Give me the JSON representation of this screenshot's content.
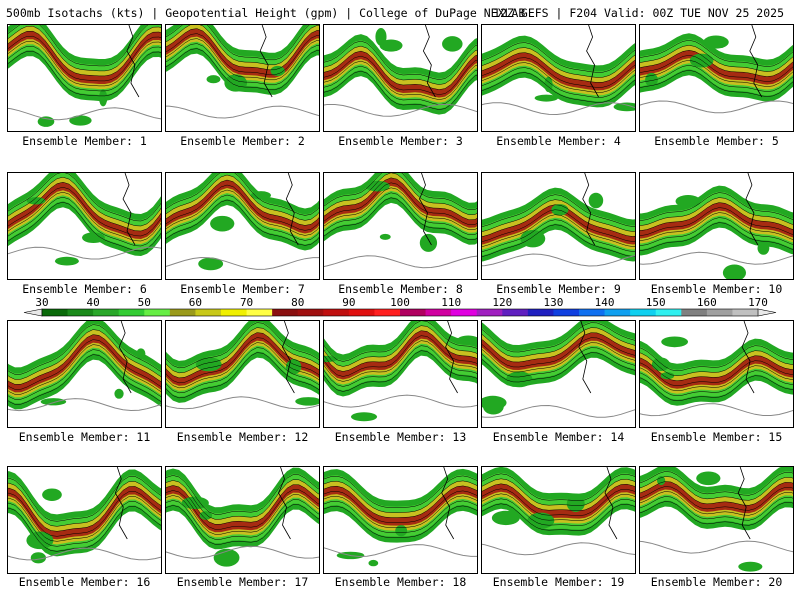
{
  "header": {
    "title_left": "500mb Isotachs (kts) | Geopotential Height (gpm) | College of DuPage NEXLAB",
    "title_right": "12Z GEFS | F204 Valid: 00Z TUE NOV 25 2025"
  },
  "panels": [
    {
      "label": "Ensemble Member: 1"
    },
    {
      "label": "Ensemble Member: 2"
    },
    {
      "label": "Ensemble Member: 3"
    },
    {
      "label": "Ensemble Member: 4"
    },
    {
      "label": "Ensemble Member: 5"
    },
    {
      "label": "Ensemble Member: 6"
    },
    {
      "label": "Ensemble Member: 7"
    },
    {
      "label": "Ensemble Member: 8"
    },
    {
      "label": "Ensemble Member: 9"
    },
    {
      "label": "Ensemble Member: 10"
    },
    {
      "label": "Ensemble Member: 11"
    },
    {
      "label": "Ensemble Member: 12"
    },
    {
      "label": "Ensemble Member: 13"
    },
    {
      "label": "Ensemble Member: 14"
    },
    {
      "label": "Ensemble Member: 15"
    },
    {
      "label": "Ensemble Member: 16"
    },
    {
      "label": "Ensemble Member: 17"
    },
    {
      "label": "Ensemble Member: 18"
    },
    {
      "label": "Ensemble Member: 19"
    },
    {
      "label": "Ensemble Member: 20"
    }
  ],
  "legend": {
    "ticks": [
      "30",
      "40",
      "50",
      "60",
      "70",
      "80",
      "90",
      "100",
      "110",
      "120",
      "130",
      "140",
      "150",
      "160",
      "170"
    ],
    "colors": [
      "#0a6a0a",
      "#1a8a1a",
      "#2aa82a",
      "#33cc33",
      "#66ee44",
      "#9a9a1a",
      "#c8c818",
      "#f0f000",
      "#ffff44",
      "#8a1010",
      "#a01010",
      "#c01010",
      "#e01010",
      "#ff2020",
      "#b00060",
      "#d000a0",
      "#e000e0",
      "#a020c0",
      "#6020c0",
      "#2020c0",
      "#1040e0",
      "#1070f0",
      "#10a0f0",
      "#10d0f0",
      "#30f0f0",
      "#808080",
      "#a0a0a0",
      "#c0c0c0"
    ],
    "arrow_color": "#e8e8e8"
  },
  "map_colors": {
    "jet_green": "#22a822",
    "jet_green_light": "#44cc33",
    "jet_yellow": "#c8c020",
    "jet_maroon": "#a01010",
    "height_contour": "#000000",
    "land_contour": "#888888"
  }
}
